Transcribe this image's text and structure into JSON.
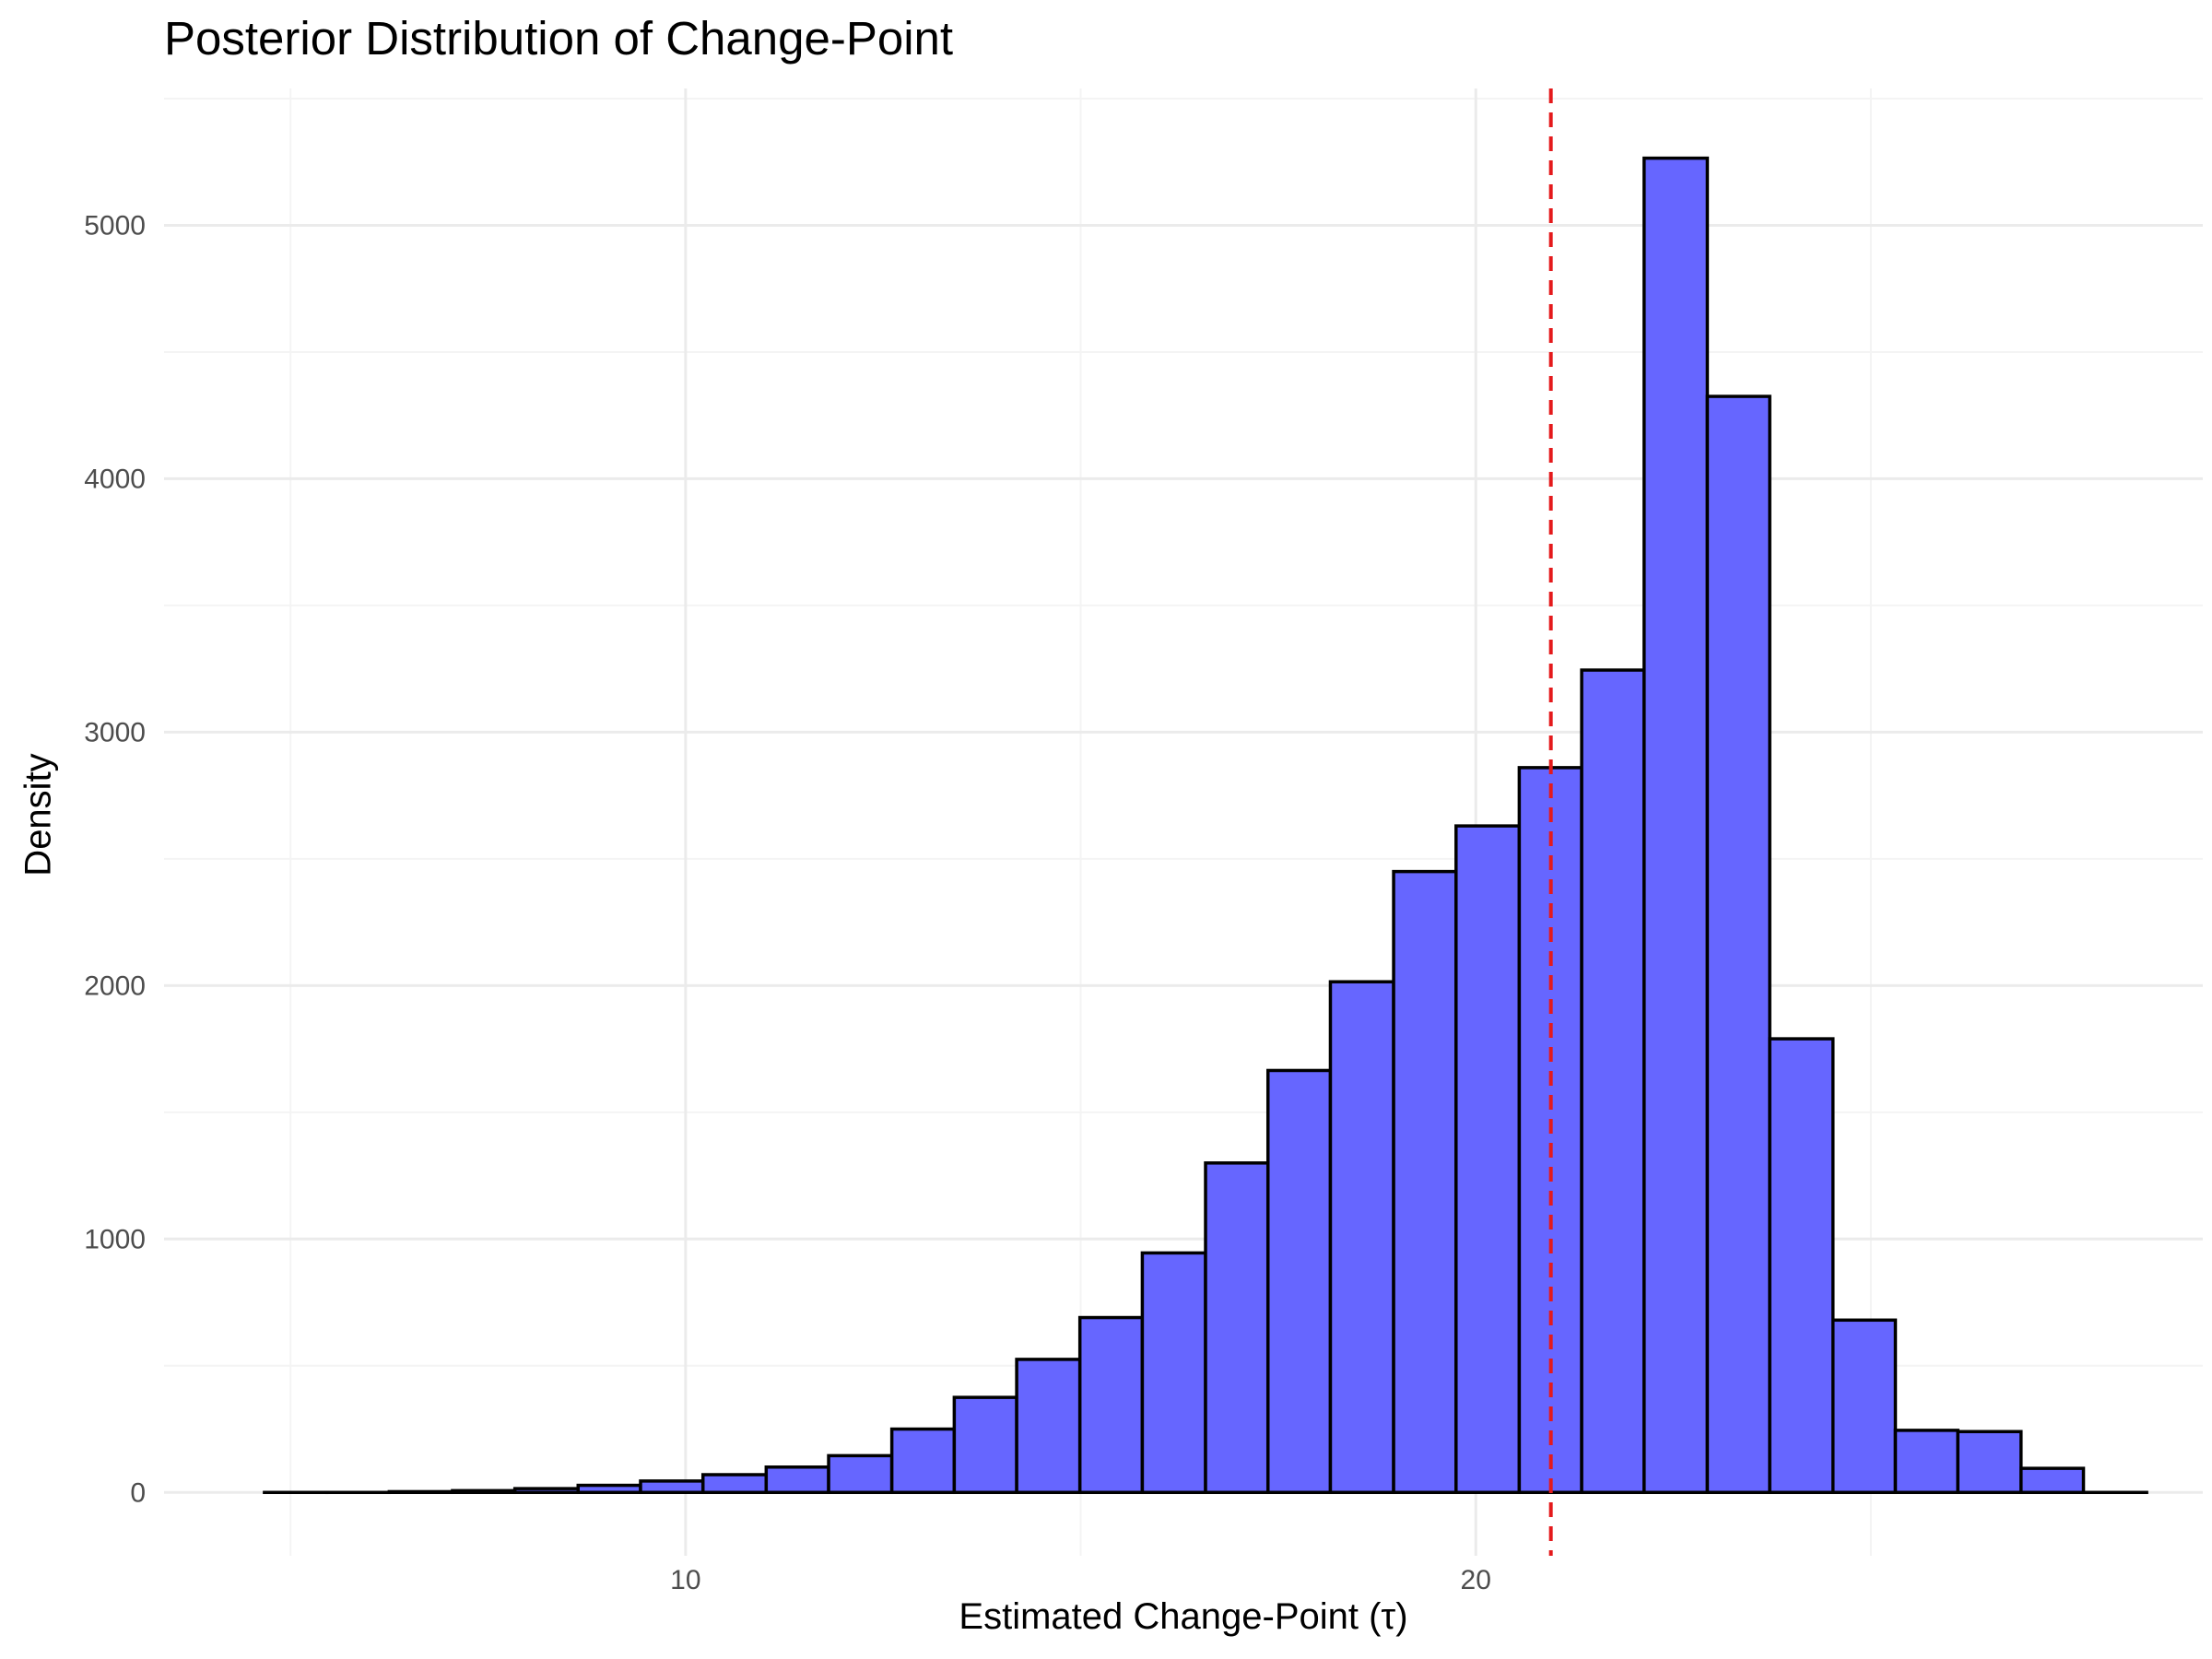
{
  "chart_data": {
    "type": "bar",
    "title": "Posterior Distribution of Change-Point",
    "xlabel": "Estimated Change-Point (τ)",
    "ylabel": "Density",
    "xlim": [
      3.4,
      29.2
    ],
    "ylim": [
      -250,
      5540
    ],
    "x_ticks": [
      10,
      20
    ],
    "y_ticks": [
      0,
      1000,
      2000,
      3000,
      4000,
      5000
    ],
    "grid": true,
    "bin_width": 0.794,
    "bins": [
      {
        "x0": 4.67,
        "x1": 5.46,
        "value": 0
      },
      {
        "x0": 5.46,
        "x1": 6.25,
        "value": 0
      },
      {
        "x0": 6.25,
        "x1": 7.05,
        "value": 3
      },
      {
        "x0": 7.05,
        "x1": 7.84,
        "value": 7
      },
      {
        "x0": 7.84,
        "x1": 8.64,
        "value": 15
      },
      {
        "x0": 8.64,
        "x1": 9.43,
        "value": 28
      },
      {
        "x0": 9.43,
        "x1": 10.22,
        "value": 45
      },
      {
        "x0": 10.22,
        "x1": 11.02,
        "value": 70
      },
      {
        "x0": 11.02,
        "x1": 11.81,
        "value": 100
      },
      {
        "x0": 11.81,
        "x1": 12.61,
        "value": 145
      },
      {
        "x0": 12.61,
        "x1": 13.4,
        "value": 250
      },
      {
        "x0": 13.4,
        "x1": 14.19,
        "value": 375
      },
      {
        "x0": 14.19,
        "x1": 14.99,
        "value": 525
      },
      {
        "x0": 14.99,
        "x1": 15.78,
        "value": 690
      },
      {
        "x0": 15.78,
        "x1": 16.58,
        "value": 945
      },
      {
        "x0": 16.58,
        "x1": 17.37,
        "value": 1300
      },
      {
        "x0": 17.37,
        "x1": 18.16,
        "value": 1665
      },
      {
        "x0": 18.16,
        "x1": 18.96,
        "value": 2015
      },
      {
        "x0": 18.96,
        "x1": 19.75,
        "value": 2450
      },
      {
        "x0": 19.75,
        "x1": 20.55,
        "value": 2630
      },
      {
        "x0": 20.55,
        "x1": 21.34,
        "value": 2860
      },
      {
        "x0": 21.34,
        "x1": 22.13,
        "value": 3245
      },
      {
        "x0": 22.13,
        "x1": 22.93,
        "value": 5265
      },
      {
        "x0": 22.93,
        "x1": 23.72,
        "value": 4325
      },
      {
        "x0": 23.72,
        "x1": 24.52,
        "value": 1790
      },
      {
        "x0": 24.52,
        "x1": 25.31,
        "value": 680
      },
      {
        "x0": 25.31,
        "x1": 26.1,
        "value": 245
      },
      {
        "x0": 26.1,
        "x1": 26.9,
        "value": 240
      },
      {
        "x0": 26.9,
        "x1": 27.69,
        "value": 95
      },
      {
        "x0": 27.69,
        "x1": 28.49,
        "value": 0
      }
    ],
    "reference_line": {
      "x": 20.95,
      "style": "dashed"
    },
    "colors": {
      "bar_fill": "#6666ff",
      "bar_stroke": "#000000",
      "reference_line": "#e41a1c",
      "grid_major": "#ebebeb",
      "grid_minor": "#f4f4f4",
      "tick_label": "#4d4d4d"
    }
  }
}
